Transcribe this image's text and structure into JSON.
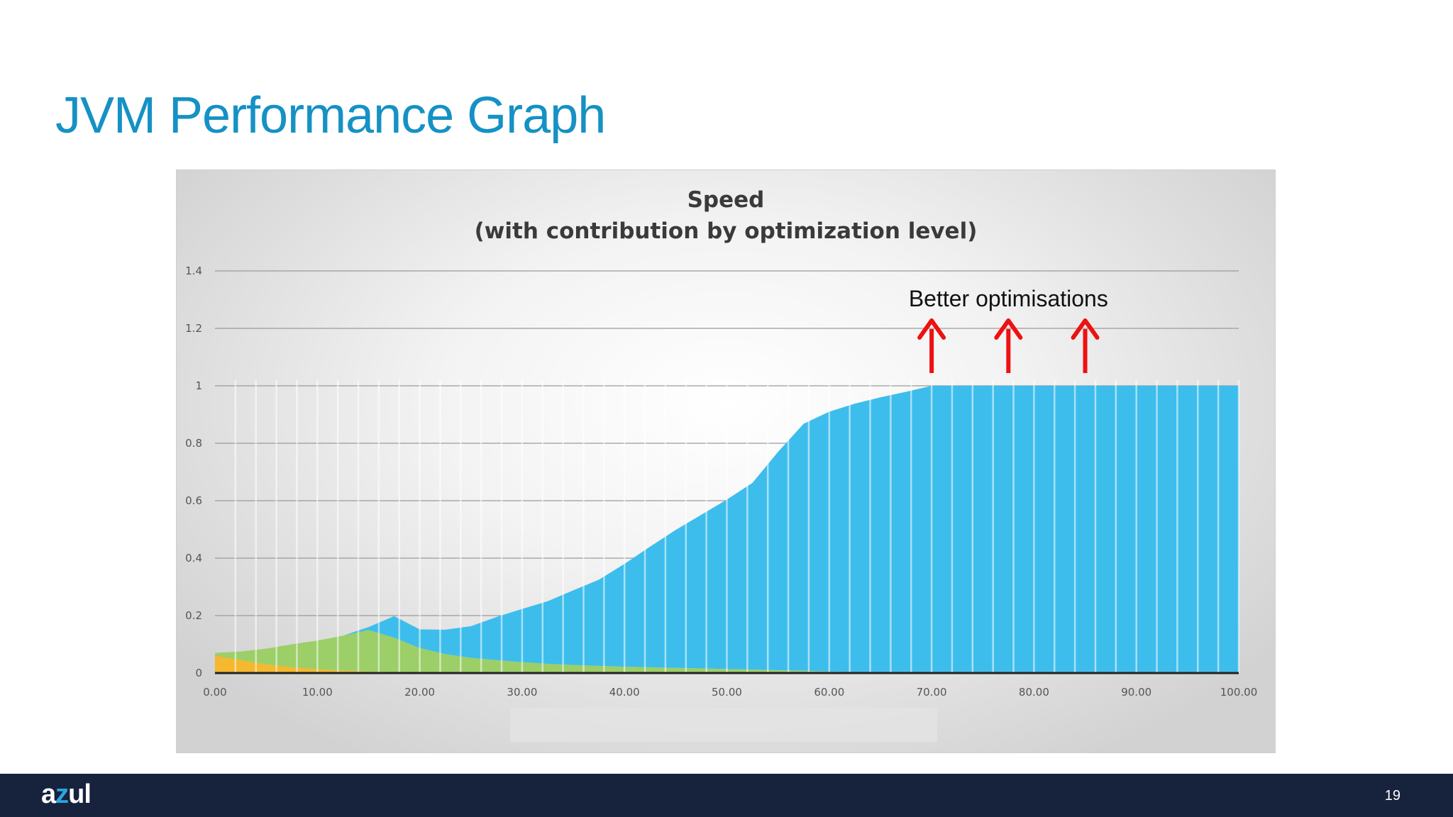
{
  "slide": {
    "title": "JVM Performance Graph",
    "page_number": "19"
  },
  "footer": {
    "logo_text": "azul",
    "logo_icon": "azul-logo-icon"
  },
  "chart_data": {
    "type": "area",
    "stacked": true,
    "title": "Speed",
    "subtitle": "(with contribution by optimization level)",
    "xlabel": "",
    "ylabel": "",
    "xlim": [
      0,
      100
    ],
    "ylim": [
      0,
      1.4
    ],
    "x_ticks": [
      "0.00",
      "10.00",
      "20.00",
      "30.00",
      "40.00",
      "50.00",
      "60.00",
      "70.00",
      "80.00",
      "90.00",
      "100.00"
    ],
    "y_ticks": [
      "0",
      "0.2",
      "0.4",
      "0.6",
      "0.8",
      "1",
      "1.2",
      "1.4"
    ],
    "grid": true,
    "legend": "none",
    "colors": {
      "orange": "#f5b82e",
      "green": "#9ccf68",
      "blue": "#3dbdec",
      "arrow": "#ee1111"
    },
    "x": [
      0,
      2.5,
      5,
      7.5,
      10,
      12.5,
      15,
      17.5,
      20,
      22.5,
      25,
      27.5,
      30,
      32.5,
      35,
      37.5,
      40,
      42.5,
      45,
      47.5,
      50,
      52.5,
      55,
      57.5,
      60,
      62.5,
      65,
      67.5,
      70,
      72.5,
      75,
      77.5,
      80,
      82.5,
      85,
      87.5,
      90,
      92.5,
      95,
      97.5,
      100
    ],
    "series": [
      {
        "color": "orange",
        "values": [
          0.06,
          0.045,
          0.03,
          0.02,
          0.013,
          0.008,
          0.005,
          0.003,
          0.002,
          0.001,
          0.001,
          0,
          0,
          0,
          0,
          0,
          0,
          0,
          0,
          0,
          0,
          0,
          0,
          0,
          0,
          0,
          0,
          0,
          0,
          0,
          0,
          0,
          0,
          0,
          0,
          0,
          0,
          0,
          0,
          0,
          0
        ]
      },
      {
        "color": "green",
        "values": [
          0.01,
          0.03,
          0.055,
          0.08,
          0.1,
          0.122,
          0.145,
          0.12,
          0.085,
          0.065,
          0.052,
          0.045,
          0.038,
          0.032,
          0.028,
          0.025,
          0.022,
          0.02,
          0.018,
          0.016,
          0.014,
          0.012,
          0.01,
          0.008,
          0.005,
          0.003,
          0.002,
          0.001,
          0,
          0,
          0,
          0,
          0,
          0,
          0,
          0,
          0,
          0,
          0,
          0,
          0
        ]
      },
      {
        "color": "blue",
        "values": [
          0,
          0,
          0,
          0,
          0,
          0,
          0.01,
          0.075,
          0.065,
          0.085,
          0.11,
          0.15,
          0.185,
          0.218,
          0.26,
          0.3,
          0.358,
          0.42,
          0.48,
          0.535,
          0.59,
          0.65,
          0.76,
          0.86,
          0.905,
          0.935,
          0.958,
          0.978,
          1,
          1,
          1,
          1,
          1,
          1,
          1,
          1,
          1,
          1,
          1,
          1,
          1
        ]
      }
    ],
    "annotation": {
      "text": "Better optimisations",
      "arrow_x": [
        70,
        77.5,
        85
      ],
      "arrow_icon": "red-up-arrow-icon"
    }
  }
}
